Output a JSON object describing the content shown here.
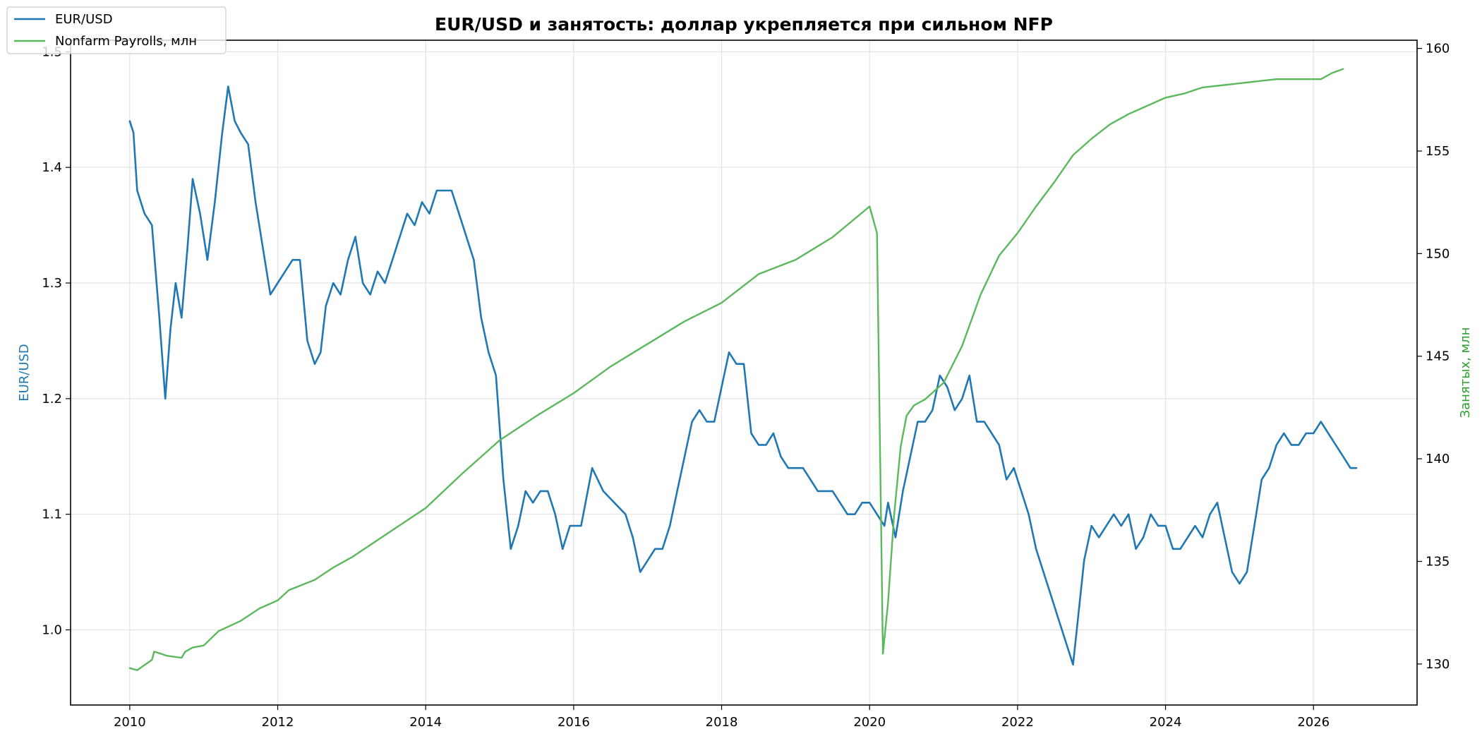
{
  "chart_data": {
    "type": "line",
    "title": "EUR/USD и занятость: доллар укрепляется при сильном NFP",
    "x_ticks": [
      "2010",
      "2012",
      "2014",
      "2016",
      "2018",
      "2020",
      "2022",
      "2024",
      "2026"
    ],
    "xlim": [
      2009.2,
      2027.4
    ],
    "left_axis": {
      "label": "EUR/USD",
      "ylim": [
        0.935,
        1.51
      ],
      "ticks": [
        "1.0",
        "1.1",
        "1.2",
        "1.3",
        "1.4",
        "1.5"
      ]
    },
    "right_axis": {
      "label": "Занятых, млн",
      "ylim": [
        128.0,
        160.4
      ],
      "ticks": [
        "130",
        "135",
        "140",
        "145",
        "150",
        "155",
        "160"
      ]
    },
    "grid": true,
    "legend_position": "top-left",
    "series": [
      {
        "name": "EUR/USD",
        "axis": "left",
        "color": "#1f77b4",
        "x": [
          2010.0,
          2010.05,
          2010.1,
          2010.2,
          2010.3,
          2010.4,
          2010.48,
          2010.55,
          2010.62,
          2010.7,
          2010.78,
          2010.85,
          2010.95,
          2011.05,
          2011.15,
          2011.25,
          2011.33,
          2011.42,
          2011.5,
          2011.6,
          2011.7,
          2011.8,
          2011.9,
          2012.0,
          2012.1,
          2012.2,
          2012.3,
          2012.4,
          2012.5,
          2012.58,
          2012.65,
          2012.75,
          2012.85,
          2012.95,
          2013.05,
          2013.15,
          2013.25,
          2013.35,
          2013.45,
          2013.55,
          2013.65,
          2013.75,
          2013.85,
          2013.95,
          2014.05,
          2014.15,
          2014.25,
          2014.35,
          2014.45,
          2014.55,
          2014.65,
          2014.75,
          2014.85,
          2014.95,
          2015.05,
          2015.15,
          2015.25,
          2015.35,
          2015.45,
          2015.55,
          2015.65,
          2015.75,
          2015.85,
          2015.95,
          2016.1,
          2016.25,
          2016.4,
          2016.55,
          2016.7,
          2016.8,
          2016.9,
          2017.0,
          2017.1,
          2017.2,
          2017.3,
          2017.4,
          2017.5,
          2017.6,
          2017.7,
          2017.8,
          2017.9,
          2018.0,
          2018.1,
          2018.2,
          2018.3,
          2018.4,
          2018.5,
          2018.6,
          2018.7,
          2018.8,
          2018.9,
          2019.0,
          2019.1,
          2019.2,
          2019.3,
          2019.4,
          2019.5,
          2019.6,
          2019.7,
          2019.8,
          2019.9,
          2020.0,
          2020.1,
          2020.2,
          2020.25,
          2020.35,
          2020.45,
          2020.55,
          2020.65,
          2020.75,
          2020.85,
          2020.95,
          2021.05,
          2021.15,
          2021.25,
          2021.35,
          2021.45,
          2021.55,
          2021.65,
          2021.75,
          2021.85,
          2021.95,
          2022.05,
          2022.15,
          2022.25,
          2022.35,
          2022.45,
          2022.55,
          2022.65,
          2022.75,
          2022.8,
          2022.9,
          2023.0,
          2023.1,
          2023.2,
          2023.3,
          2023.4,
          2023.5,
          2023.6,
          2023.7,
          2023.8,
          2023.9,
          2024.0,
          2024.1,
          2024.2,
          2024.3,
          2024.4,
          2024.5,
          2024.6,
          2024.7,
          2024.8,
          2024.9,
          2025.0,
          2025.1,
          2025.2,
          2025.3,
          2025.4,
          2025.5,
          2025.6,
          2025.7,
          2025.8,
          2025.9,
          2026.0,
          2026.1,
          2026.2,
          2026.3,
          2026.4,
          2026.5,
          2026.58
        ],
        "values": [
          1.44,
          1.43,
          1.38,
          1.36,
          1.35,
          1.27,
          1.2,
          1.26,
          1.3,
          1.27,
          1.33,
          1.39,
          1.36,
          1.32,
          1.37,
          1.43,
          1.47,
          1.44,
          1.43,
          1.42,
          1.37,
          1.33,
          1.29,
          1.3,
          1.31,
          1.32,
          1.32,
          1.25,
          1.23,
          1.24,
          1.28,
          1.3,
          1.29,
          1.32,
          1.34,
          1.3,
          1.29,
          1.31,
          1.3,
          1.32,
          1.34,
          1.36,
          1.35,
          1.37,
          1.36,
          1.38,
          1.38,
          1.38,
          1.36,
          1.34,
          1.32,
          1.27,
          1.24,
          1.22,
          1.13,
          1.07,
          1.09,
          1.12,
          1.11,
          1.12,
          1.12,
          1.1,
          1.07,
          1.09,
          1.09,
          1.14,
          1.12,
          1.11,
          1.1,
          1.08,
          1.05,
          1.06,
          1.07,
          1.07,
          1.09,
          1.12,
          1.15,
          1.18,
          1.19,
          1.18,
          1.18,
          1.21,
          1.24,
          1.23,
          1.23,
          1.17,
          1.16,
          1.16,
          1.17,
          1.15,
          1.14,
          1.14,
          1.14,
          1.13,
          1.12,
          1.12,
          1.12,
          1.11,
          1.1,
          1.1,
          1.11,
          1.11,
          1.1,
          1.09,
          1.11,
          1.08,
          1.12,
          1.15,
          1.18,
          1.18,
          1.19,
          1.22,
          1.21,
          1.19,
          1.2,
          1.22,
          1.18,
          1.18,
          1.17,
          1.16,
          1.13,
          1.14,
          1.12,
          1.1,
          1.07,
          1.05,
          1.03,
          1.01,
          0.99,
          0.97,
          1.0,
          1.06,
          1.09,
          1.08,
          1.09,
          1.1,
          1.09,
          1.1,
          1.07,
          1.08,
          1.1,
          1.09,
          1.09,
          1.07,
          1.07,
          1.08,
          1.09,
          1.08,
          1.1,
          1.11,
          1.08,
          1.05,
          1.04,
          1.05,
          1.09,
          1.13,
          1.14,
          1.16,
          1.17,
          1.16,
          1.16,
          1.17,
          1.17,
          1.18,
          1.17,
          1.16,
          1.15,
          1.14,
          1.14
        ]
      },
      {
        "name": "Nonfarm Payrolls, млн",
        "axis": "right",
        "color": "#5cb85c",
        "x": [
          2010.0,
          2010.1,
          2010.3,
          2010.33,
          2010.42,
          2010.5,
          2010.7,
          2010.75,
          2010.85,
          2011.0,
          2011.2,
          2011.5,
          2011.75,
          2012.0,
          2012.15,
          2012.5,
          2012.75,
          2013.0,
          2013.5,
          2014.0,
          2014.5,
          2015.0,
          2015.5,
          2016.0,
          2016.5,
          2017.0,
          2017.5,
          2018.0,
          2018.5,
          2019.0,
          2019.5,
          2020.0,
          2020.1,
          2020.18,
          2020.25,
          2020.33,
          2020.42,
          2020.5,
          2020.6,
          2020.75,
          2021.0,
          2021.25,
          2021.5,
          2021.75,
          2022.0,
          2022.25,
          2022.5,
          2022.75,
          2023.0,
          2023.25,
          2023.5,
          2023.75,
          2024.0,
          2024.25,
          2024.5,
          2024.75,
          2025.0,
          2025.25,
          2025.5,
          2025.75,
          2026.0,
          2026.1,
          2026.25,
          2026.4
        ],
        "values": [
          129.8,
          129.7,
          130.2,
          130.6,
          130.5,
          130.4,
          130.3,
          130.6,
          130.8,
          130.9,
          131.6,
          132.1,
          132.7,
          133.1,
          133.6,
          134.1,
          134.7,
          135.2,
          136.4,
          137.6,
          139.3,
          140.9,
          142.1,
          143.2,
          144.5,
          145.6,
          146.7,
          147.6,
          149.0,
          149.7,
          150.8,
          152.3,
          151.0,
          130.5,
          133.0,
          137.2,
          140.6,
          142.1,
          142.6,
          142.9,
          143.7,
          145.5,
          148.0,
          149.9,
          151.0,
          152.3,
          153.5,
          154.8,
          155.6,
          156.3,
          156.8,
          157.2,
          157.6,
          157.8,
          158.1,
          158.2,
          158.3,
          158.4,
          158.5,
          158.5,
          158.5,
          158.5,
          158.8,
          159.0
        ]
      }
    ]
  }
}
